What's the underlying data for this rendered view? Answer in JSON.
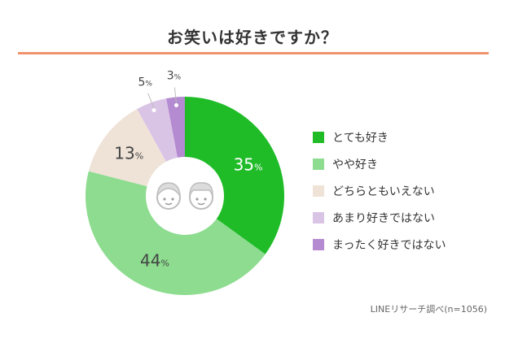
{
  "title": "お笑いは好きですか？",
  "source": "LINEリサーチ調べ(n=1056)",
  "chart_data": {
    "type": "pie",
    "donut": true,
    "unit": "%",
    "categories": [
      "とても好き",
      "やや好き",
      "どちらともいえない",
      "あまり好きではない",
      "まったく好きではない"
    ],
    "values": [
      35,
      44,
      13,
      5,
      3
    ],
    "colors": [
      "#1fbc28",
      "#8ddc8f",
      "#efe3d8",
      "#dac4e6",
      "#b48ad0"
    ],
    "legend_position": "right"
  }
}
